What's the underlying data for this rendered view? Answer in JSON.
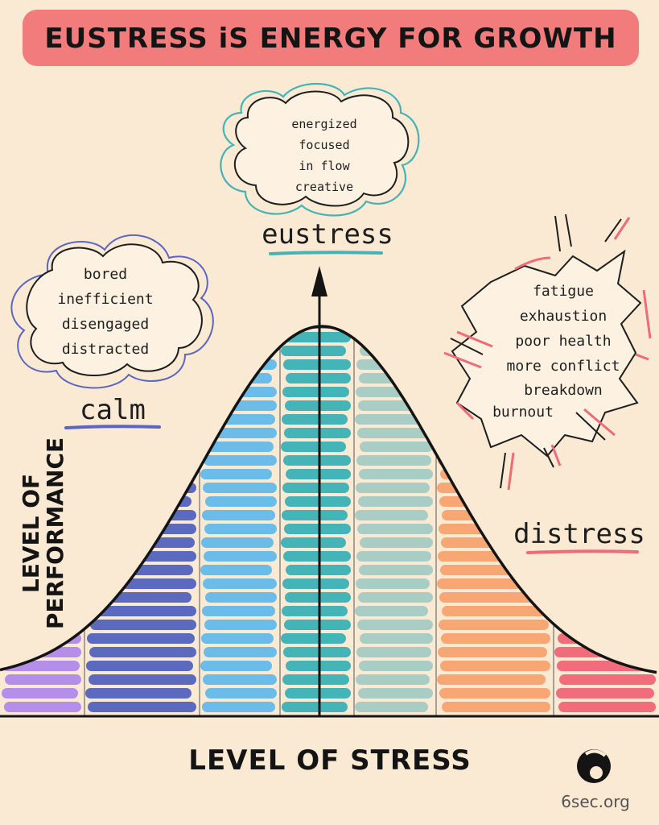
{
  "title": "EUSTRESS iS ENERGY FOR GROWTH",
  "axes": {
    "x_label": "LEVEL OF STRESS",
    "y_label_line1": "LEVEL OF",
    "y_label_line2": "PERFORMANCE"
  },
  "zones": {
    "calm": {
      "label": "calm",
      "items": [
        "bored",
        "inefficient",
        "disengaged",
        "distracted"
      ],
      "underline_color": "#5b66c2"
    },
    "eustress": {
      "label": "eustress",
      "items": [
        "energized",
        "focused",
        "in flow",
        "creative"
      ],
      "underline_color": "#45b3b5"
    },
    "distress": {
      "label": "distress",
      "items": [
        "fatigue",
        "exhaustion",
        "poor health",
        "more conflict",
        "breakdown",
        "burnout"
      ],
      "underline_color": "#ee6b78"
    }
  },
  "bands": [
    {
      "name": "band-purple",
      "color": "#b48ee8"
    },
    {
      "name": "band-indigo",
      "color": "#5b6abf"
    },
    {
      "name": "band-sky",
      "color": "#6bbce8"
    },
    {
      "name": "band-teal",
      "color": "#44b4b8"
    },
    {
      "name": "band-sage",
      "color": "#a9cdc5"
    },
    {
      "name": "band-orange",
      "color": "#f7a674"
    },
    {
      "name": "band-pink",
      "color": "#f26d7b"
    }
  ],
  "colors": {
    "background": "#fbead3",
    "title_banner": "#f27b7b",
    "ink": "#141414"
  },
  "logo": {
    "text": "6sec.org"
  }
}
